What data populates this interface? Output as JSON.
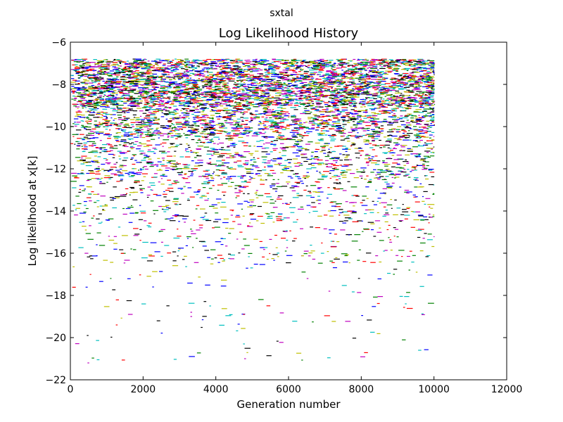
{
  "suptitle": "sxtal",
  "chart_data": {
    "type": "scatter",
    "title": "Log Likelihood History",
    "xlabel": "Generation number",
    "ylabel": "Log likelihood at x[k]",
    "xlim": [
      0,
      12000
    ],
    "ylim": [
      -22,
      -6
    ],
    "xticks": [
      0,
      2000,
      4000,
      6000,
      8000,
      10000,
      12000
    ],
    "xtick_labels": [
      "0",
      "2000",
      "4000",
      "6000",
      "8000",
      "10000",
      "12000"
    ],
    "yticks": [
      -22,
      -20,
      -18,
      -16,
      -14,
      -12,
      -10,
      -8,
      -6
    ],
    "ytick_labels": [
      "−22",
      "−20",
      "−18",
      "−16",
      "−14",
      "−12",
      "−10",
      "−8",
      "−6"
    ],
    "grid": false,
    "legend": "none",
    "marker": "short horizontal dash",
    "series_colors": [
      "#0000ff",
      "#008000",
      "#ff0000",
      "#00bfbf",
      "#bf00bf",
      "#bfbf00",
      "#000000"
    ],
    "generation_range": [
      0,
      10000
    ],
    "band_top": -6.8,
    "density_bins": [
      {
        "from": -6.8,
        "to": -7.5,
        "share": 0.16
      },
      {
        "from": -7.5,
        "to": -9.0,
        "share": 0.38
      },
      {
        "from": -9.0,
        "to": -10.5,
        "share": 0.2
      },
      {
        "from": -10.5,
        "to": -12.5,
        "share": 0.14
      },
      {
        "from": -12.5,
        "to": -14.5,
        "share": 0.07
      },
      {
        "from": -14.5,
        "to": -16.5,
        "share": 0.035
      },
      {
        "from": -16.5,
        "to": -21.2,
        "share": 0.015
      }
    ],
    "outliers": [
      {
        "x": 450,
        "y": -19.9
      },
      {
        "x": 470,
        "y": -21.2
      },
      {
        "x": 1250,
        "y": -19.4
      },
      {
        "x": 3300,
        "y": -18.8
      },
      {
        "x": 3300,
        "y": -19.0
      },
      {
        "x": 4750,
        "y": -20.3
      },
      {
        "x": 4780,
        "y": -21.0
      },
      {
        "x": 4750,
        "y": -18.9
      },
      {
        "x": 3820,
        "y": -18.5
      },
      {
        "x": 2250,
        "y": -17.6
      },
      {
        "x": 6500,
        "y": -17.2
      },
      {
        "x": 7100,
        "y": -17.8
      },
      {
        "x": 9200,
        "y": -18.4
      },
      {
        "x": 9300,
        "y": -16.8
      },
      {
        "x": 8600,
        "y": -15.9
      },
      {
        "x": 5900,
        "y": -15.9
      },
      {
        "x": 700,
        "y": -15.6
      },
      {
        "x": 400,
        "y": -14.9
      },
      {
        "x": 1650,
        "y": -15.8
      },
      {
        "x": 9500,
        "y": -16.9
      }
    ]
  }
}
